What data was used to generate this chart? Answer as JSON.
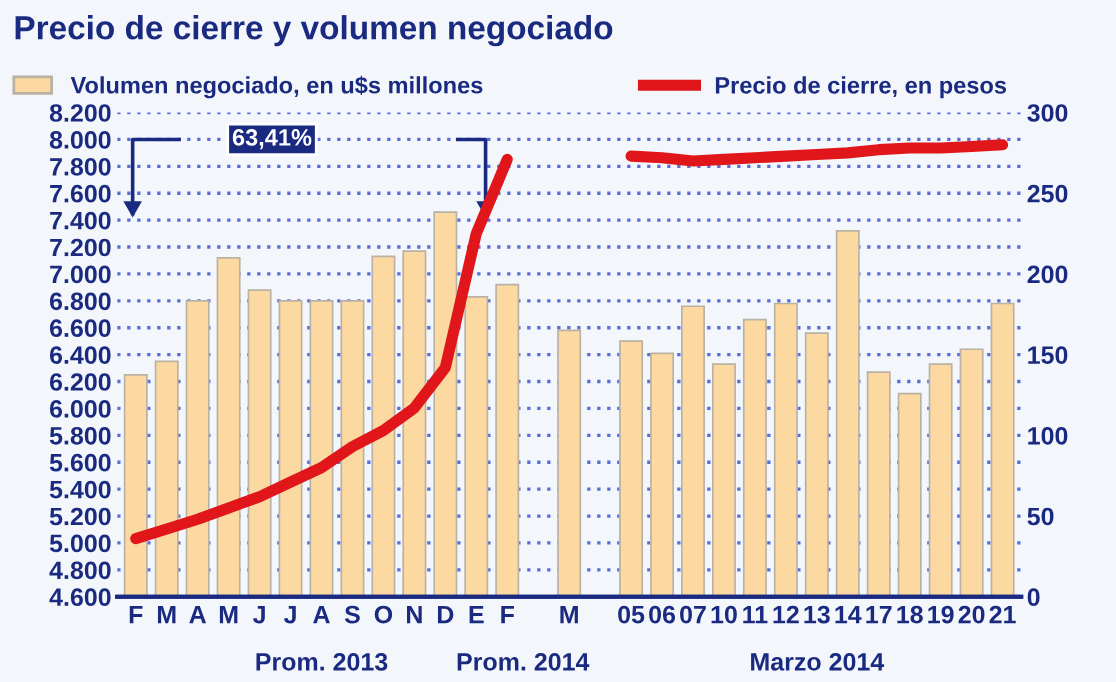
{
  "chart_data": {
    "type": "bar",
    "title": "Precio de cierre y volumen negociado",
    "categories": [
      "F",
      "M",
      "A",
      "M",
      "J",
      "J",
      "A",
      "S",
      "O",
      "N",
      "D",
      "E",
      "F",
      null,
      "M",
      null,
      "05",
      "06",
      "07",
      "10",
      "11",
      "12",
      "13",
      "14",
      "17",
      "18",
      "19",
      "20",
      "21"
    ],
    "series": [
      {
        "name": "Volumen negociado, en u$s millones",
        "color": "#fcd9a0",
        "values": [
          6250,
          6350,
          6800,
          7120,
          6880,
          6800,
          6800,
          6800,
          7130,
          7170,
          7460,
          6830,
          6920,
          null,
          6580,
          null,
          6500,
          6410,
          6760,
          6330,
          6660,
          6780,
          6560,
          7320,
          6270,
          6110,
          6330,
          6440,
          6780
        ]
      },
      {
        "name": "Precio de cierre, en pesos",
        "type": "line",
        "axis": "y2",
        "color": "#e0161b",
        "values": [
          36,
          42,
          48,
          55,
          62,
          71,
          80,
          93,
          103,
          117,
          142,
          225,
          271,
          null,
          null,
          null,
          273,
          272,
          270,
          271,
          272,
          273,
          274,
          275,
          277,
          278,
          278,
          279,
          280
        ]
      }
    ],
    "ylim": [
      4600,
      8200
    ],
    "yticks": [
      {
        "value": 4600,
        "label": "4.600"
      },
      {
        "value": 4800,
        "label": "4.800"
      },
      {
        "value": 5000,
        "label": "5.000"
      },
      {
        "value": 5200,
        "label": "5.200"
      },
      {
        "value": 5400,
        "label": "5.400"
      },
      {
        "value": 5600,
        "label": "5.600"
      },
      {
        "value": 5800,
        "label": "5.800"
      },
      {
        "value": 6000,
        "label": "6.000"
      },
      {
        "value": 6200,
        "label": "6.200"
      },
      {
        "value": 6400,
        "label": "6.400"
      },
      {
        "value": 6600,
        "label": "6.600"
      },
      {
        "value": 6800,
        "label": "6.800"
      },
      {
        "value": 7000,
        "label": "7.000"
      },
      {
        "value": 7200,
        "label": "7.200"
      },
      {
        "value": 7400,
        "label": "7.400"
      },
      {
        "value": 7600,
        "label": "7.600"
      },
      {
        "value": 7800,
        "label": "7.800"
      },
      {
        "value": 8000,
        "label": "8.000"
      },
      {
        "value": 8200,
        "label": "8.200"
      }
    ],
    "y2lim": [
      0,
      300
    ],
    "y2ticks": [
      0,
      50,
      100,
      150,
      200,
      250,
      300
    ],
    "grid": "y",
    "legend": "top",
    "annotations": [
      "63,41%",
      "Prom. 2013",
      "Prom. 2014",
      "Marzo 2014"
    ]
  }
}
